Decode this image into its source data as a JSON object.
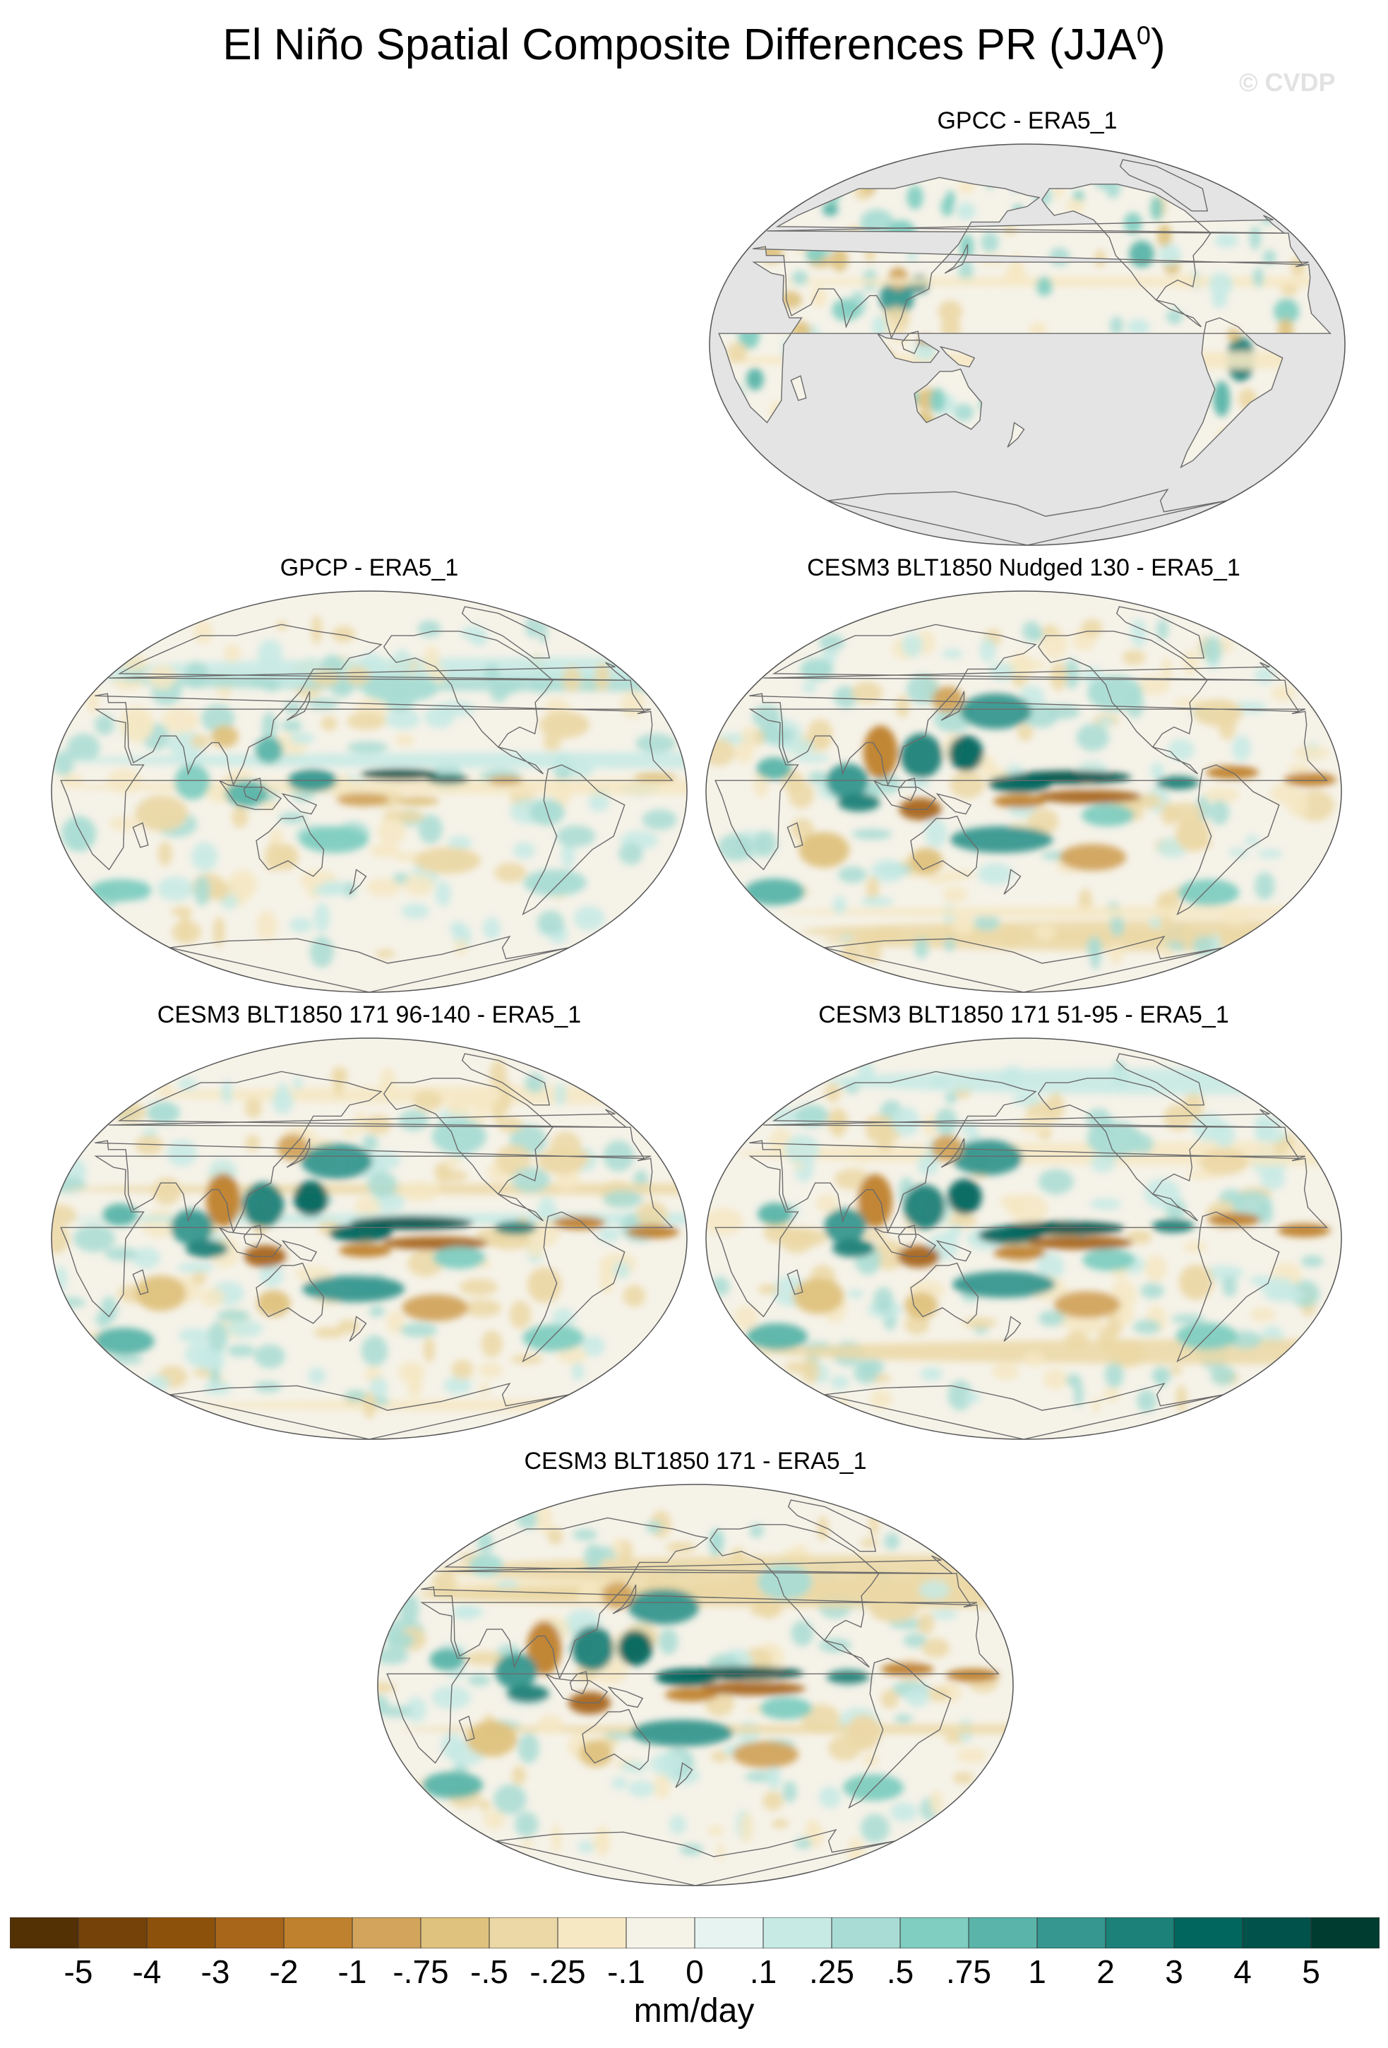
{
  "figure": {
    "title_main": "El Niño Spatial Composite Differences PR (JJA",
    "title_sup": "0",
    "title_close": ")",
    "watermark": "© CVDP",
    "units": "mm/day"
  },
  "panels": [
    {
      "id": "gpcc",
      "title": "GPCC - ERA5_1",
      "ocean_missing": true,
      "anomaly_strength": "weak"
    },
    {
      "id": "gpcp",
      "title": "GPCP - ERA5_1",
      "ocean_missing": false,
      "anomaly_strength": "moderate"
    },
    {
      "id": "nudged",
      "title": "CESM3 BLT1850 Nudged 130 - ERA5_1",
      "ocean_missing": false,
      "anomaly_strength": "strong"
    },
    {
      "id": "m96",
      "title": "CESM3 BLT1850 171 96-140 - ERA5_1",
      "ocean_missing": false,
      "anomaly_strength": "strong"
    },
    {
      "id": "m51",
      "title": "CESM3 BLT1850 171 51-95 - ERA5_1",
      "ocean_missing": false,
      "anomaly_strength": "strong"
    },
    {
      "id": "m171",
      "title": "CESM3 BLT1850 171 - ERA5_1",
      "ocean_missing": false,
      "anomaly_strength": "strong"
    }
  ],
  "colorbar": {
    "labels": [
      "-5",
      "-4",
      "-3",
      "-2",
      "-1",
      "-.75",
      "-.5",
      "-.25",
      "-.1",
      "0",
      ".1",
      ".25",
      ".5",
      ".75",
      "1",
      "2",
      "3",
      "4",
      "5"
    ],
    "colors": [
      "#543005",
      "#754309",
      "#8c510a",
      "#a8661b",
      "#bf812d",
      "#d2a45c",
      "#dfc27d",
      "#ecd8a6",
      "#f6e8c3",
      "#f5f2e8",
      "#e6f3f1",
      "#c7eae5",
      "#a9dcd4",
      "#80cdc1",
      "#5ab4a9",
      "#35978f",
      "#1c8178",
      "#01665e",
      "#01524a",
      "#003c30"
    ]
  }
}
